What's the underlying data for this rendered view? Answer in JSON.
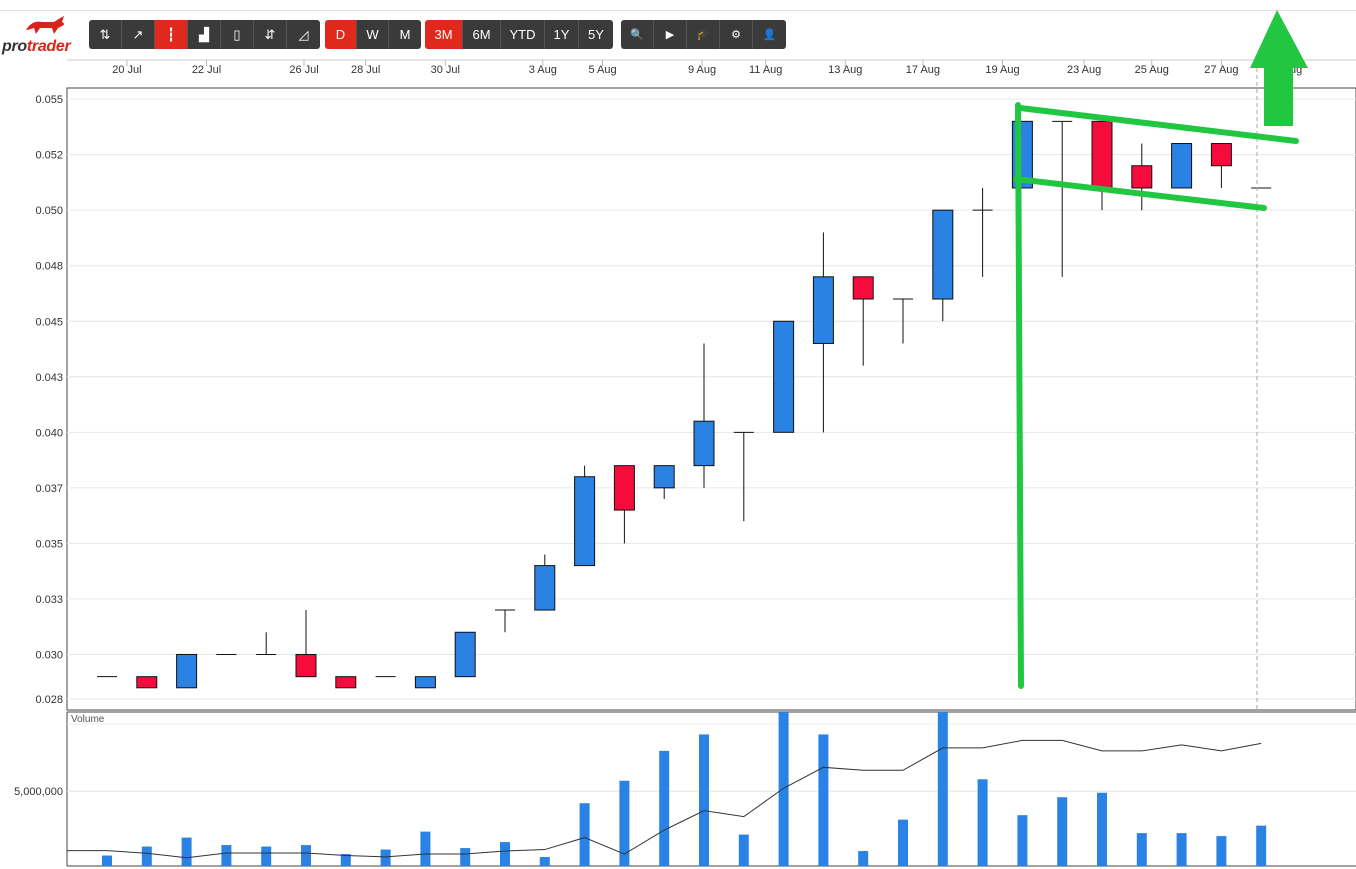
{
  "brand": {
    "name_pre": "pro",
    "name_post": "trader"
  },
  "toolbar": {
    "chart_types": [
      {
        "icon": "ohlc-icon",
        "glyph": "⇅",
        "active": false
      },
      {
        "icon": "line-chart-icon",
        "glyph": "↗",
        "active": false
      },
      {
        "icon": "candlestick-icon",
        "glyph": "┇",
        "active": true
      },
      {
        "icon": "bar-chart-icon",
        "glyph": "▟",
        "active": false
      },
      {
        "icon": "hollow-candle-icon",
        "glyph": "▯",
        "active": false
      },
      {
        "icon": "heikin-ashi-icon",
        "glyph": "⇵",
        "active": false
      },
      {
        "icon": "area-chart-icon",
        "glyph": "◿",
        "active": false
      }
    ],
    "intervals": [
      {
        "label": "D",
        "active": true
      },
      {
        "label": "W",
        "active": false
      },
      {
        "label": "M",
        "active": false
      }
    ],
    "ranges": [
      {
        "label": "3M",
        "active": true
      },
      {
        "label": "6M",
        "active": false
      },
      {
        "label": "YTD",
        "active": false
      },
      {
        "label": "1Y",
        "active": false
      },
      {
        "label": "5Y",
        "active": false
      }
    ],
    "tools": [
      {
        "icon": "search-icon",
        "glyph": "🔍"
      },
      {
        "icon": "play-icon",
        "glyph": "▶"
      },
      {
        "icon": "graduation-cap-icon",
        "glyph": "🎓"
      },
      {
        "icon": "settings-icon",
        "glyph": "⚙"
      },
      {
        "icon": "user-icon",
        "glyph": "👤"
      }
    ]
  },
  "colors": {
    "up": "#2a82e4",
    "down": "#f50c3d",
    "annotation": "#22c741"
  },
  "chart_data": {
    "type": "candlestick",
    "x_ticks": [
      "20 Jul",
      "22 Jul",
      "26 Jul",
      "28 Jul",
      "30 Jul",
      "3 Aug",
      "5 Aug",
      "9 Aug",
      "11 Aug",
      "13 Aug",
      "17 Aug",
      "19 Aug",
      "23 Aug",
      "25 Aug",
      "27 Aug",
      "29 Aug"
    ],
    "y_ticks": [
      "0.055",
      "0.052",
      "0.050",
      "0.048",
      "0.045",
      "0.043",
      "0.040",
      "0.037",
      "0.035",
      "0.033",
      "0.030",
      "0.028"
    ],
    "ylim": [
      0.0275,
      0.0555
    ],
    "candles": [
      {
        "open": 0.029,
        "high": 0.029,
        "low": 0.029,
        "close": 0.029
      },
      {
        "open": 0.029,
        "high": 0.029,
        "low": 0.0285,
        "close": 0.0285
      },
      {
        "open": 0.0285,
        "high": 0.03,
        "low": 0.0285,
        "close": 0.03
      },
      {
        "open": 0.03,
        "high": 0.03,
        "low": 0.03,
        "close": 0.03
      },
      {
        "open": 0.03,
        "high": 0.031,
        "low": 0.03,
        "close": 0.03
      },
      {
        "open": 0.03,
        "high": 0.032,
        "low": 0.029,
        "close": 0.029
      },
      {
        "open": 0.029,
        "high": 0.029,
        "low": 0.0285,
        "close": 0.0285
      },
      {
        "open": 0.029,
        "high": 0.029,
        "low": 0.029,
        "close": 0.029
      },
      {
        "open": 0.0285,
        "high": 0.029,
        "low": 0.0285,
        "close": 0.029
      },
      {
        "open": 0.029,
        "high": 0.031,
        "low": 0.029,
        "close": 0.031
      },
      {
        "open": 0.032,
        "high": 0.032,
        "low": 0.031,
        "close": 0.032
      },
      {
        "open": 0.032,
        "high": 0.0345,
        "low": 0.032,
        "close": 0.034
      },
      {
        "open": 0.034,
        "high": 0.0385,
        "low": 0.034,
        "close": 0.038
      },
      {
        "open": 0.0385,
        "high": 0.0385,
        "low": 0.035,
        "close": 0.0365
      },
      {
        "open": 0.0375,
        "high": 0.0385,
        "low": 0.037,
        "close": 0.0385
      },
      {
        "open": 0.0385,
        "high": 0.044,
        "low": 0.0375,
        "close": 0.0405
      },
      {
        "open": 0.04,
        "high": 0.04,
        "low": 0.036,
        "close": 0.04
      },
      {
        "open": 0.04,
        "high": 0.045,
        "low": 0.04,
        "close": 0.045
      },
      {
        "open": 0.044,
        "high": 0.049,
        "low": 0.04,
        "close": 0.047
      },
      {
        "open": 0.047,
        "high": 0.047,
        "low": 0.043,
        "close": 0.046
      },
      {
        "open": 0.046,
        "high": 0.046,
        "low": 0.044,
        "close": 0.046
      },
      {
        "open": 0.046,
        "high": 0.05,
        "low": 0.045,
        "close": 0.05
      },
      {
        "open": 0.05,
        "high": 0.051,
        "low": 0.047,
        "close": 0.05
      },
      {
        "open": 0.051,
        "high": 0.054,
        "low": 0.051,
        "close": 0.054
      },
      {
        "open": 0.054,
        "high": 0.054,
        "low": 0.047,
        "close": 0.054
      },
      {
        "open": 0.054,
        "high": 0.054,
        "low": 0.05,
        "close": 0.051
      },
      {
        "open": 0.052,
        "high": 0.053,
        "low": 0.05,
        "close": 0.051
      },
      {
        "open": 0.051,
        "high": 0.053,
        "low": 0.051,
        "close": 0.053
      },
      {
        "open": 0.053,
        "high": 0.053,
        "low": 0.051,
        "close": 0.052
      },
      {
        "open": 0.051,
        "high": 0.051,
        "low": 0.051,
        "close": 0.051
      }
    ],
    "volume": {
      "label": "Volume",
      "y_tick": "5,000,000",
      "y_tick_value": 5000000,
      "ylim": [
        0,
        10300000
      ],
      "values": [
        700000,
        1300000,
        1900000,
        1400000,
        1300000,
        1400000,
        800000,
        1100000,
        2300000,
        1200000,
        1600000,
        600000,
        4200000,
        5700000,
        7700000,
        8800000,
        2100000,
        10600000,
        8800000,
        1000000,
        3100000,
        10500000,
        5800000,
        3400000,
        4600000,
        4900000,
        2200000,
        2200000,
        2000000,
        2700000
      ],
      "avg_line": [
        1030000,
        850000,
        550000,
        870000,
        870000,
        870000,
        700000,
        610000,
        800000,
        800000,
        1000000,
        1100000,
        1900000,
        800000,
        2400000,
        3700000,
        3300000,
        5200000,
        6600000,
        6400000,
        6400000,
        7900000,
        7900000,
        8400000,
        8400000,
        7700000,
        7700000,
        8100000,
        7700000,
        8200000
      ]
    }
  }
}
